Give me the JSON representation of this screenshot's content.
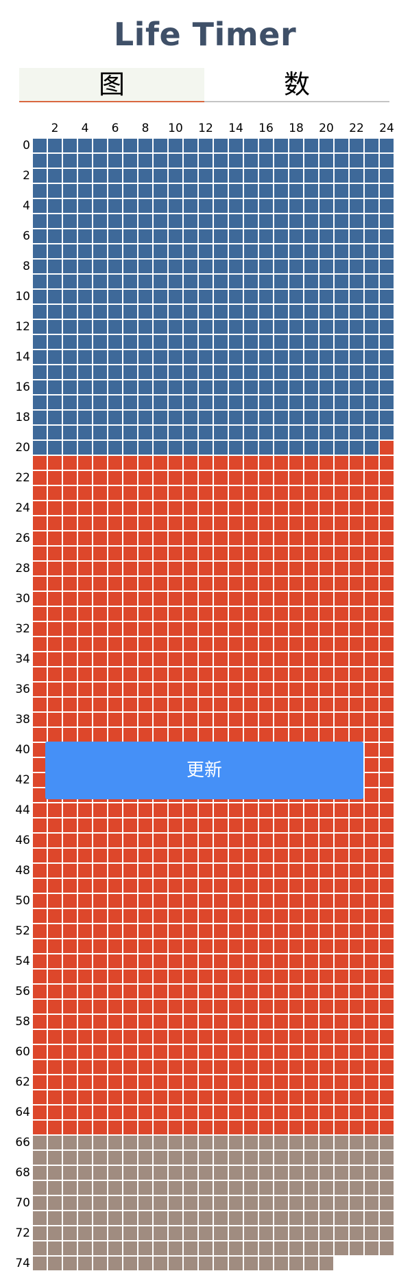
{
  "app": {
    "title": "Life Timer"
  },
  "tabs": [
    {
      "label": "图",
      "active": true
    },
    {
      "label": "数",
      "active": false
    }
  ],
  "colors": {
    "title": "#3f5068",
    "lived": "#3e6999",
    "remaining": "#dd472b",
    "beyond": "#a08c80",
    "tab_active_bg": "#f3f6ef",
    "tab_active_underline": "#d9663f",
    "button": "#4590f7"
  },
  "chart_data": {
    "type": "heatmap",
    "columns_per_row": 24,
    "rows": 75,
    "x_tick_labels": [
      "2",
      "4",
      "6",
      "8",
      "10",
      "12",
      "14",
      "16",
      "18",
      "20",
      "22",
      "24"
    ],
    "y_tick_labels": [
      "0",
      "2",
      "4",
      "6",
      "8",
      "10",
      "12",
      "14",
      "16",
      "18",
      "20",
      "22",
      "24",
      "26",
      "28",
      "30",
      "32",
      "34",
      "36",
      "38",
      "40",
      "42",
      "44",
      "46",
      "48",
      "50",
      "52",
      "54",
      "56",
      "58",
      "60",
      "62",
      "64",
      "66",
      "68",
      "70",
      "72",
      "74"
    ],
    "segments": [
      {
        "state": "lived",
        "cells": 503
      },
      {
        "state": "remaining",
        "cells": 1081
      },
      {
        "state": "beyond",
        "cells": 212
      }
    ]
  },
  "update_button": {
    "label": "更新"
  }
}
